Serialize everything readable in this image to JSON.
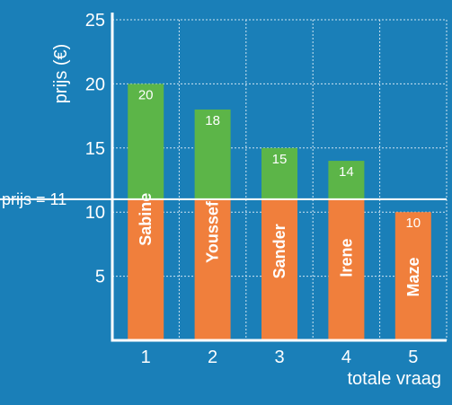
{
  "chart_data": {
    "type": "bar",
    "title": "",
    "ylabel": "prijs (€)",
    "xlabel": "totale vraag",
    "ylim": [
      0,
      25
    ],
    "yticks": [
      5,
      10,
      15,
      20,
      25
    ],
    "grid": true,
    "reference_line": {
      "value": 11,
      "label": "prijs = 11"
    },
    "categories": [
      "1",
      "2",
      "3",
      "4",
      "5"
    ],
    "bars": [
      {
        "name": "Sabine",
        "value": 20,
        "value_label": "20"
      },
      {
        "name": "Youssef",
        "value": 18,
        "value_label": "18"
      },
      {
        "name": "Sander",
        "value": 15,
        "value_label": "15"
      },
      {
        "name": "Irene",
        "value": 14,
        "value_label": "14"
      },
      {
        "name": "Maze",
        "value": 10,
        "value_label": "10"
      }
    ],
    "colors": {
      "background": "#1a7fb8",
      "above_price": "#5cb548",
      "below_price": "#f07f3c",
      "axis": "#ffffff",
      "grid": "#cfe4f2"
    }
  }
}
